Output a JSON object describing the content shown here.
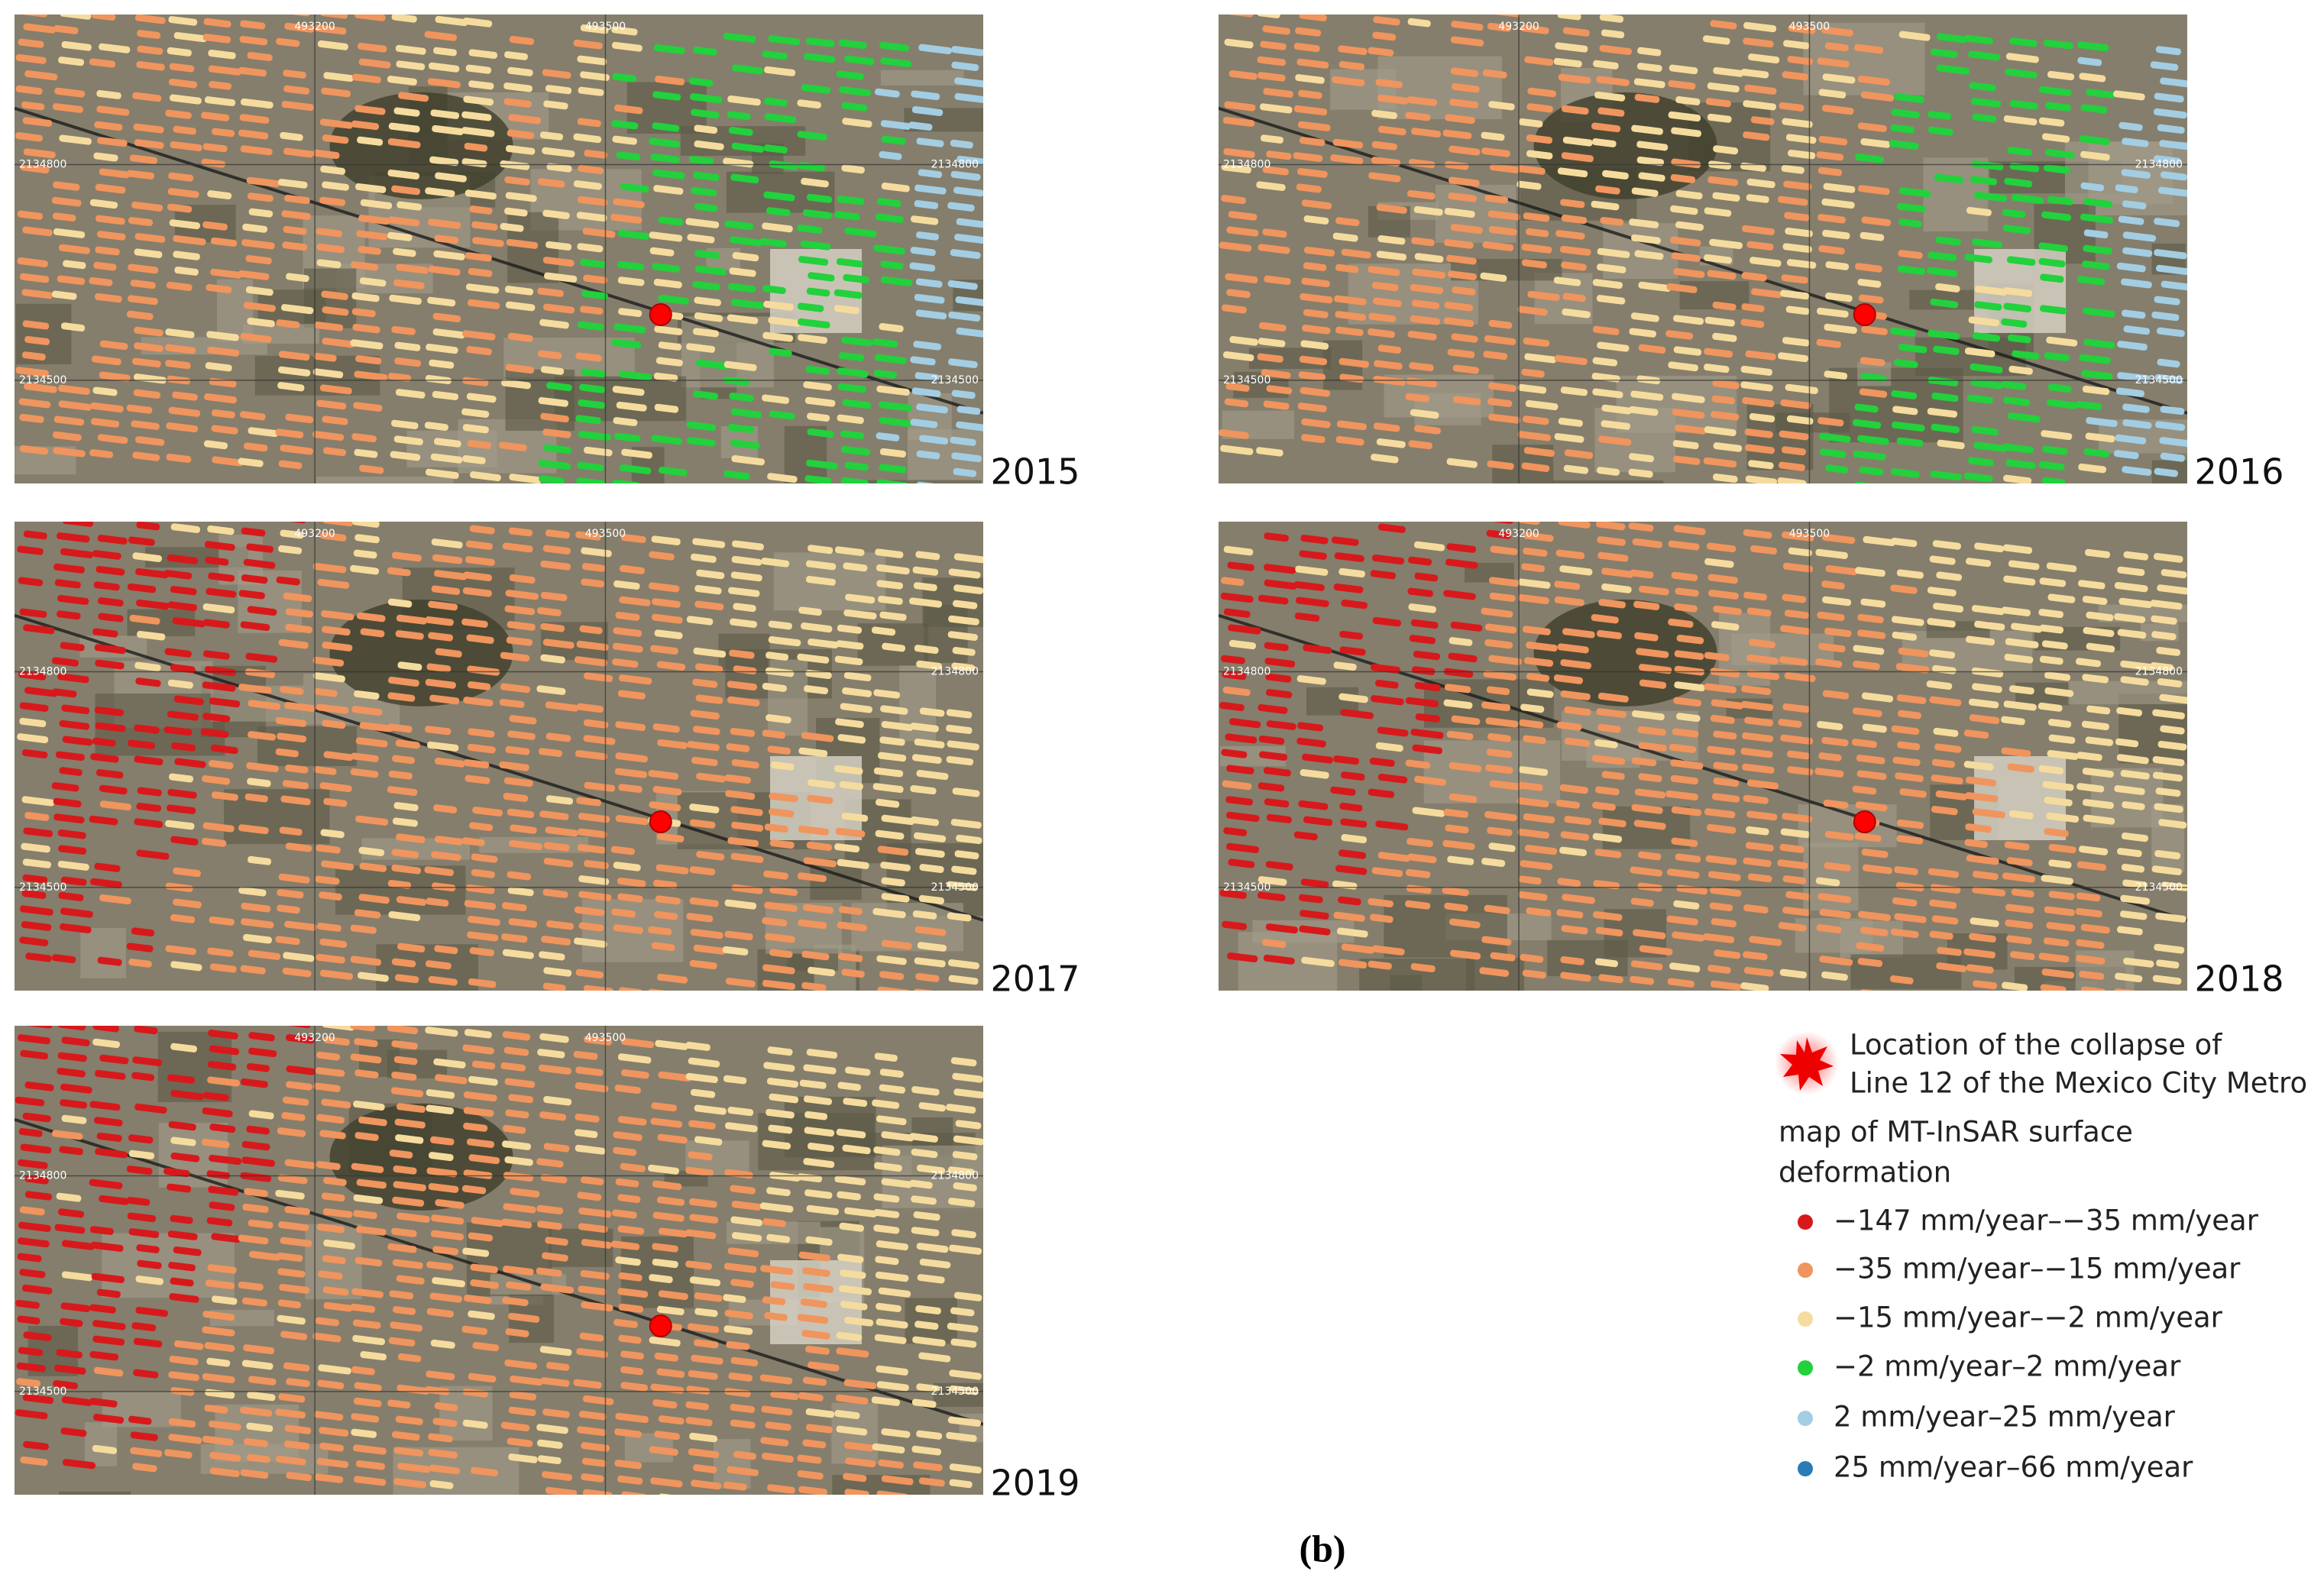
{
  "panels": [
    {
      "year": "2015"
    },
    {
      "year": "2016"
    },
    {
      "year": "2017"
    },
    {
      "year": "2018"
    },
    {
      "year": "2019"
    }
  ],
  "grid_labels": {
    "x": [
      "493200",
      "493500"
    ],
    "y": [
      "2134800",
      "2134500"
    ]
  },
  "legend": {
    "marker_label": [
      "Location of the collapse of",
      "Line 12 of the Mexico City Metro"
    ],
    "title": [
      "map of MT-InSAR surface",
      "deformation"
    ],
    "items": [
      {
        "label": "−147 mm/year–−35 mm/year",
        "color": "#d7191c"
      },
      {
        "label": "−35 mm/year–−15 mm/year",
        "color": "#f0955e"
      },
      {
        "label": "−15 mm/year–−2 mm/year",
        "color": "#f5dc9e"
      },
      {
        "label": "−2 mm/year–2 mm/year",
        "color": "#22d13c"
      },
      {
        "label": "2 mm/year–25 mm/year",
        "color": "#a3cde2"
      },
      {
        "label": "25 mm/year–66 mm/year",
        "color": "#2b7bb4"
      }
    ]
  },
  "caption": "(b)"
}
